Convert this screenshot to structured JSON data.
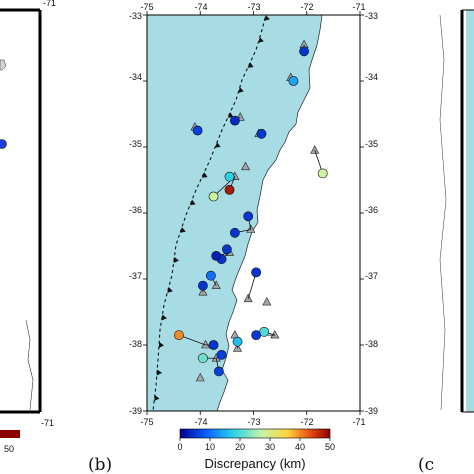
{
  "figure": {
    "panels": [
      {
        "label": "(b)",
        "position": "center"
      },
      {
        "label": "(c",
        "position": "right"
      }
    ]
  },
  "map": {
    "lon_ticks": [
      "-75",
      "-74",
      "-73",
      "-72",
      "-71"
    ],
    "lat_ticks": [
      "-33",
      "-34",
      "-35",
      "-36",
      "-37",
      "-38",
      "-39"
    ],
    "left_panel_bottom_ticks": [
      "50",
      "-71"
    ],
    "land_color": "#ffffff",
    "sea_color": "#a7dce4",
    "trench_label": ""
  },
  "colorbar": {
    "title": "Discrepancy (km)",
    "ticks": [
      "0",
      "10",
      "20",
      "30",
      "40",
      "50"
    ],
    "range": [
      0,
      50
    ],
    "stops": [
      "#00008b",
      "#0a5cff",
      "#27d0e8",
      "#c8f5a6",
      "#ffd23a",
      "#e64b10",
      "#8b0000"
    ]
  },
  "chart_data": {
    "type": "scatter",
    "title": "",
    "xlabel": "",
    "ylabel": "",
    "xlim": [
      -75,
      -71
    ],
    "ylim": [
      -39,
      -33
    ],
    "series": [
      {
        "kind": "station-triangles",
        "values": [
          [
            -72.05,
            -33.45
          ],
          [
            -72.3,
            -33.95
          ],
          [
            -73.25,
            -34.55
          ],
          [
            -74.1,
            -34.7
          ],
          [
            -72.9,
            -34.8
          ],
          [
            -71.85,
            -35.05
          ],
          [
            -73.15,
            -35.3
          ],
          [
            -73.35,
            -35.45
          ],
          [
            -73.05,
            -36.25
          ],
          [
            -73.45,
            -36.6
          ],
          [
            -73.7,
            -37.1
          ],
          [
            -73.35,
            -37.85
          ],
          [
            -73.1,
            -37.3
          ],
          [
            -72.75,
            -37.35
          ],
          [
            -72.6,
            -37.85
          ],
          [
            -73.3,
            -38.05
          ],
          [
            -73.7,
            -38.2
          ],
          [
            -74.0,
            -38.5
          ],
          [
            -73.95,
            -37.2
          ],
          [
            -73.9,
            -38.0
          ]
        ]
      },
      {
        "kind": "event-circles",
        "points": [
          {
            "lon": -72.05,
            "lat": -33.55,
            "discrepancy": 5
          },
          {
            "lon": -72.25,
            "lat": -34.0,
            "discrepancy": 14
          },
          {
            "lon": -73.35,
            "lat": -34.6,
            "discrepancy": 4
          },
          {
            "lon": -74.05,
            "lat": -34.75,
            "discrepancy": 6
          },
          {
            "lon": -72.85,
            "lat": -34.8,
            "discrepancy": 5
          },
          {
            "lon": -71.7,
            "lat": -35.4,
            "discrepancy": 28
          },
          {
            "lon": -73.45,
            "lat": -35.45,
            "discrepancy": 18
          },
          {
            "lon": -73.45,
            "lat": -35.65,
            "discrepancy": 48
          },
          {
            "lon": -73.75,
            "lat": -35.75,
            "discrepancy": 28
          },
          {
            "lon": -73.1,
            "lat": -36.05,
            "discrepancy": 5
          },
          {
            "lon": -73.35,
            "lat": -36.3,
            "discrepancy": 5
          },
          {
            "lon": -73.5,
            "lat": -36.55,
            "discrepancy": 5
          },
          {
            "lon": -73.6,
            "lat": -36.7,
            "discrepancy": 5
          },
          {
            "lon": -73.7,
            "lat": -36.65,
            "discrepancy": 3
          },
          {
            "lon": -72.95,
            "lat": -36.9,
            "discrepancy": 5
          },
          {
            "lon": -73.8,
            "lat": -36.95,
            "discrepancy": 10
          },
          {
            "lon": -73.95,
            "lat": -37.1,
            "discrepancy": 5
          },
          {
            "lon": -74.4,
            "lat": -37.85,
            "discrepancy": 40
          },
          {
            "lon": -72.8,
            "lat": -37.8,
            "discrepancy": 20
          },
          {
            "lon": -72.95,
            "lat": -37.85,
            "discrepancy": 5
          },
          {
            "lon": -73.3,
            "lat": -37.95,
            "discrepancy": 16
          },
          {
            "lon": -73.75,
            "lat": -38.0,
            "discrepancy": 5
          },
          {
            "lon": -73.6,
            "lat": -38.15,
            "discrepancy": 6
          },
          {
            "lon": -73.95,
            "lat": -38.2,
            "discrepancy": 22
          },
          {
            "lon": -73.65,
            "lat": -38.4,
            "discrepancy": 6
          }
        ]
      }
    ]
  }
}
